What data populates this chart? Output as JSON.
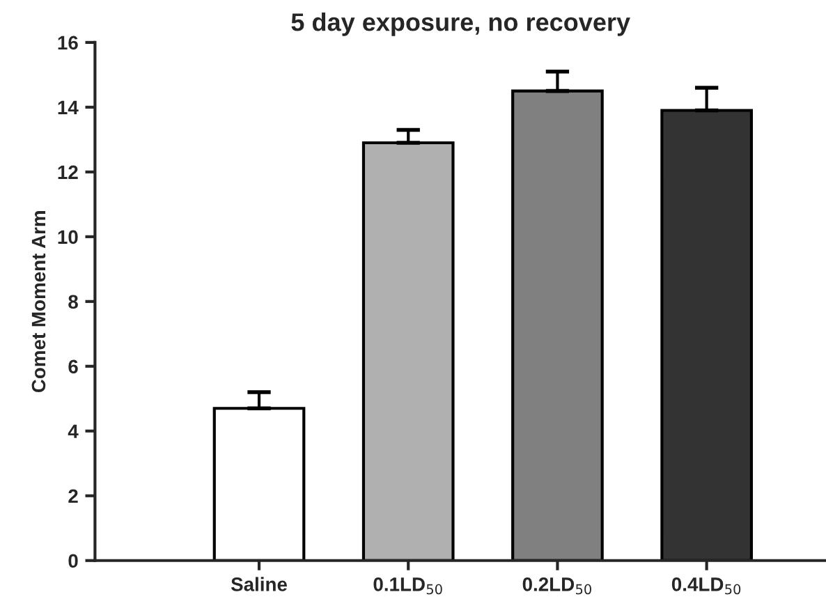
{
  "chart_data": {
    "type": "bar",
    "title": "5 day exposure, no recovery",
    "ylabel": "Comet Moment Arm",
    "categories": [
      "Saline",
      "0.1LD$_{50}$",
      "0.2LD$_{50}$",
      "0.4LD$_{50}$"
    ],
    "values": [
      4.7,
      12.9,
      14.5,
      13.9
    ],
    "colors": [
      "#ffffff",
      "#b0b0b0",
      "#808080",
      "#333333"
    ],
    "errors": [
      [
        4.7,
        5.2
      ],
      [
        12.9,
        13.3
      ],
      [
        14.5,
        15.1
      ],
      [
        13.9,
        14.6
      ]
    ],
    "ylim": [
      0,
      16
    ],
    "yticks": [
      0,
      2,
      4,
      6,
      8,
      10,
      12,
      14,
      16
    ],
    "grid": false,
    "legend": false
  }
}
